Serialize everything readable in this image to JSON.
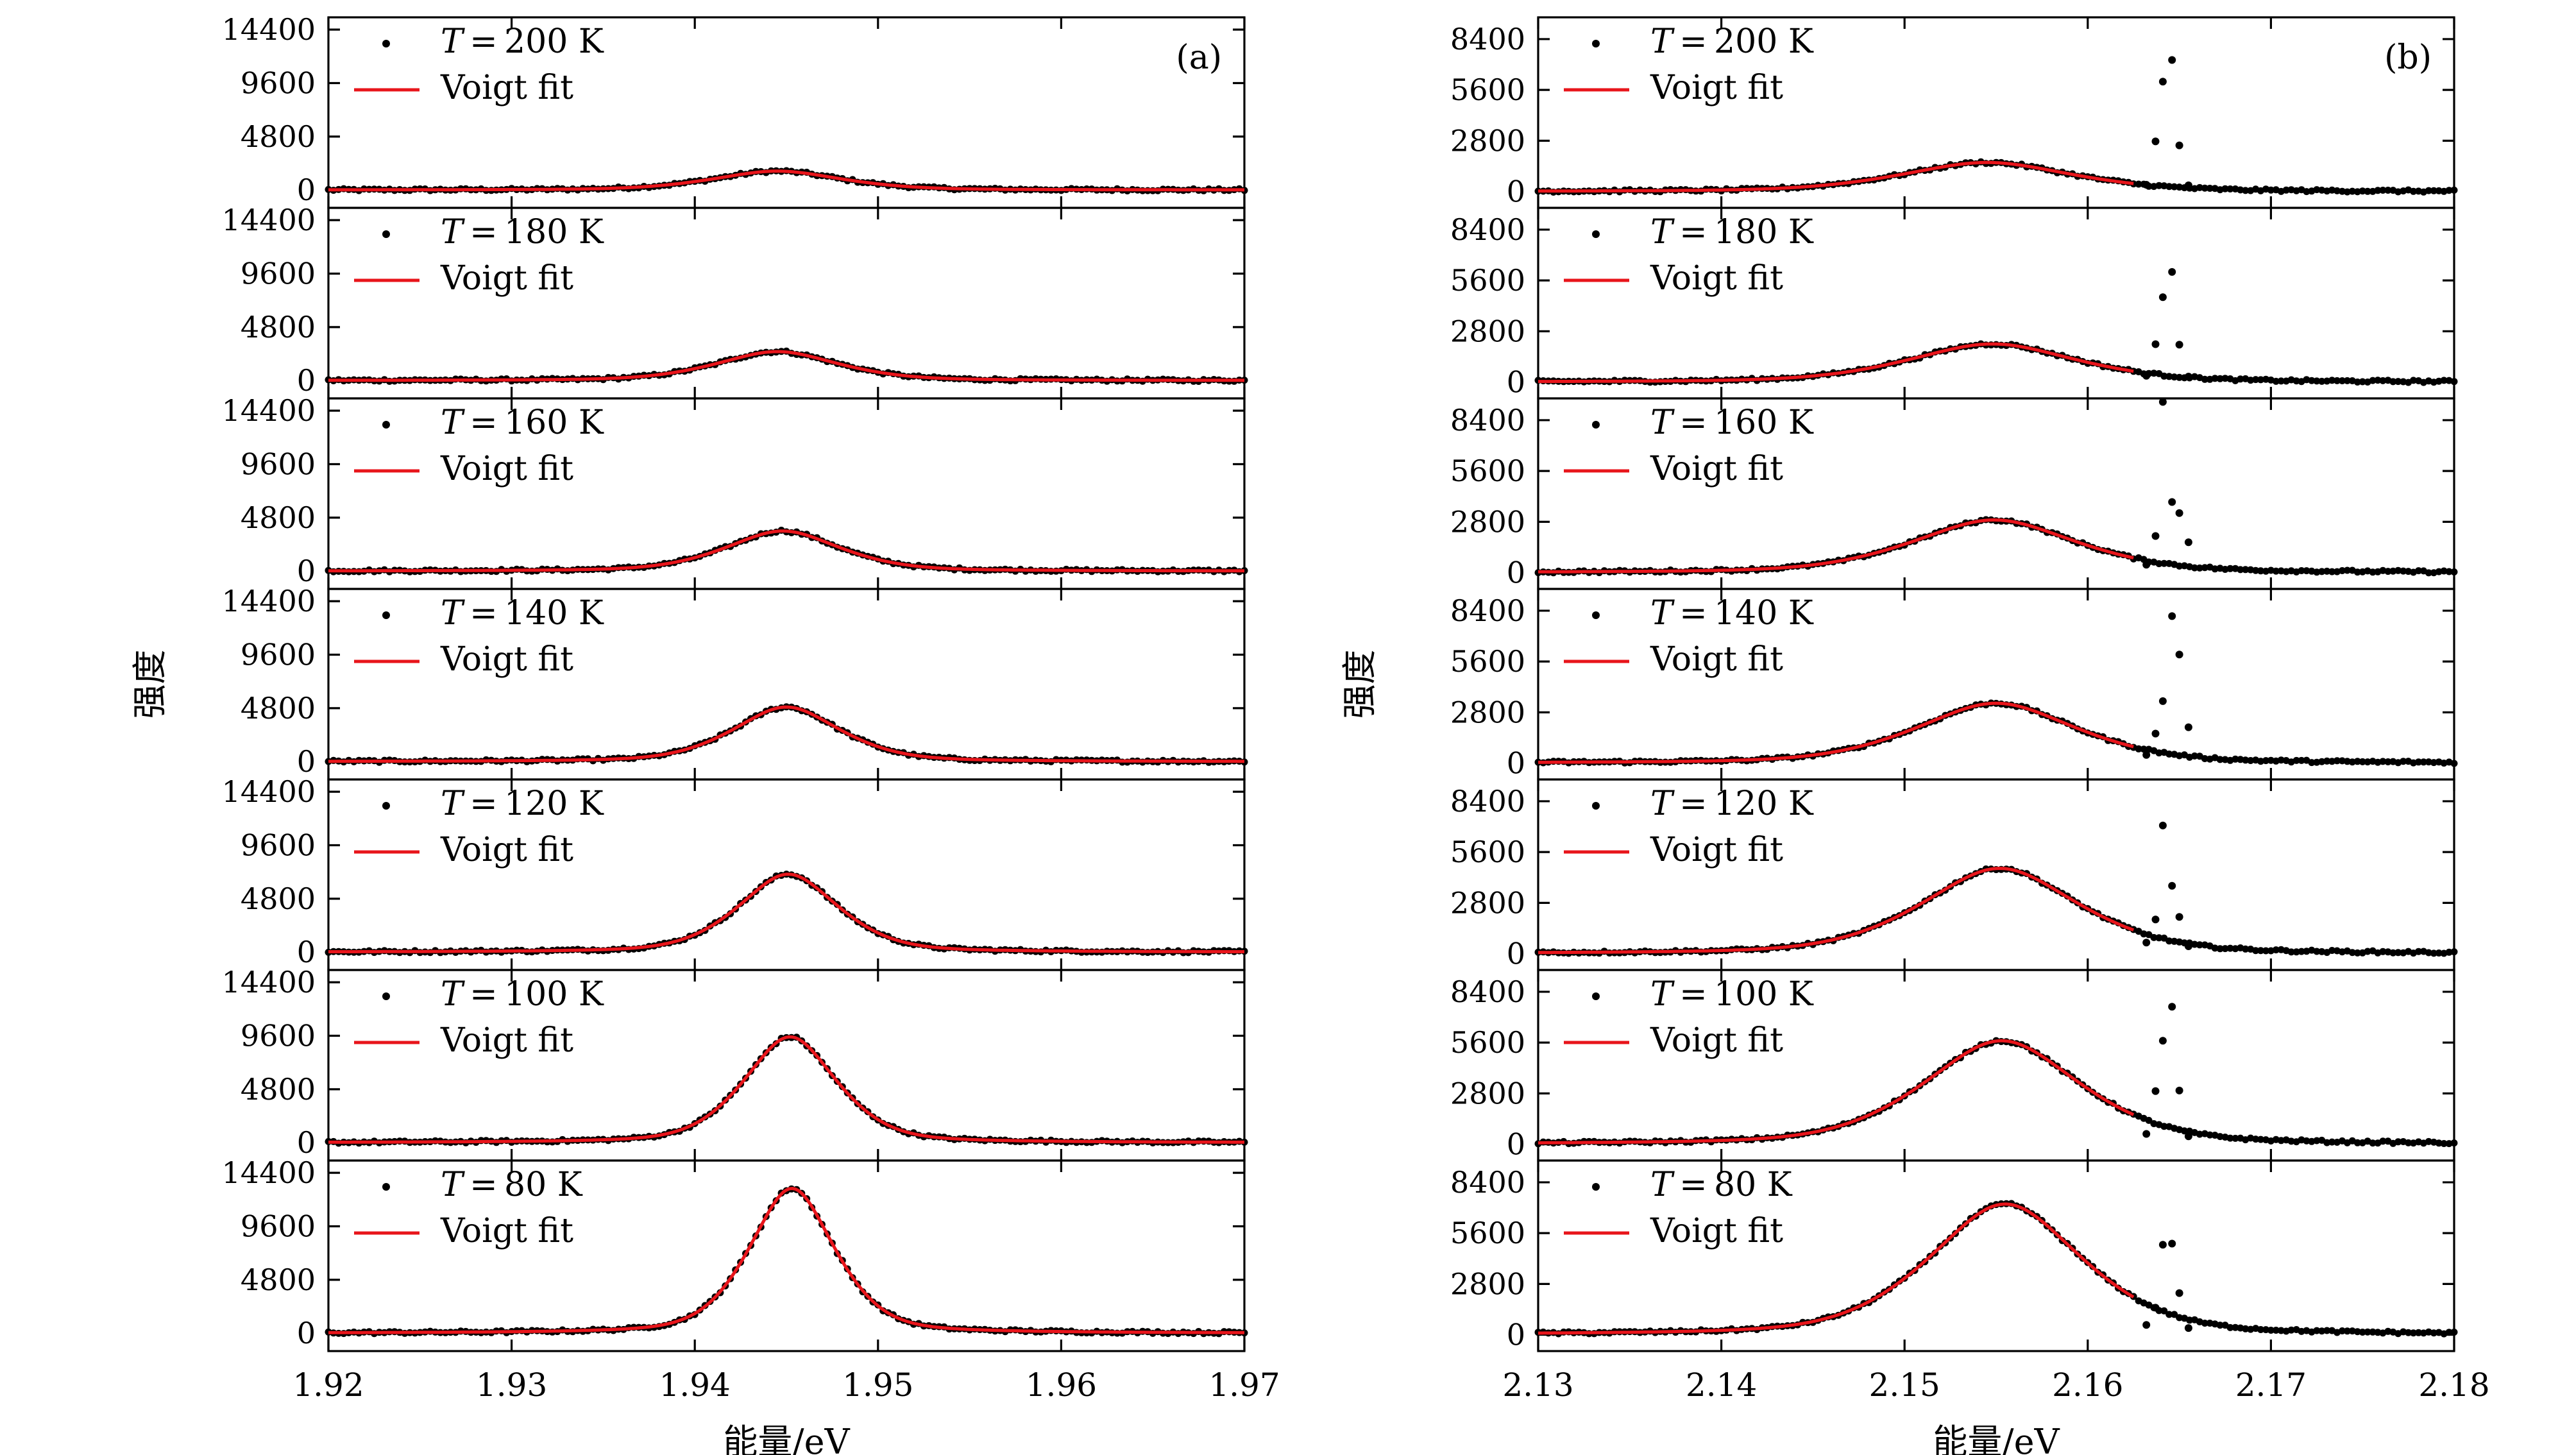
{
  "chart_data": [
    {
      "type": "scatter",
      "panel_label": "(a)",
      "xlabel": "能量/eV",
      "ylabel": "强度",
      "xlim": [
        1.92,
        1.97
      ],
      "xticks": [
        "1.92",
        "1.93",
        "1.94",
        "1.95",
        "1.96",
        "1.97"
      ],
      "yticks": [
        0,
        4800,
        9600,
        14400
      ],
      "ytick_labels": [
        "0",
        "4800",
        "9600",
        "14400"
      ],
      "ylim": [
        -1600,
        15500
      ],
      "legend": {
        "position": "top-left",
        "dots": "T = {T} K",
        "line": "Voigt fit"
      },
      "annotations": {
        "T_symbol": "T",
        "equals": "=",
        "unit": "K"
      },
      "series": [
        {
          "name": "T = 200 K",
          "T": "200",
          "peak_center": 1.9445,
          "peak_height": 1700,
          "width": 0.0036,
          "background": 0
        },
        {
          "name": "T = 180 K",
          "T": "180",
          "peak_center": 1.9445,
          "peak_height": 2600,
          "width": 0.0034,
          "background": 0
        },
        {
          "name": "T = 160 K",
          "T": "160",
          "peak_center": 1.9448,
          "peak_height": 3600,
          "width": 0.0032,
          "background": 0
        },
        {
          "name": "T = 140 K",
          "T": "140",
          "peak_center": 1.945,
          "peak_height": 4900,
          "width": 0.003,
          "background": 0
        },
        {
          "name": "T = 120 K",
          "T": "120",
          "peak_center": 1.9451,
          "peak_height": 7000,
          "width": 0.0028,
          "background": 0
        },
        {
          "name": "T = 100 K",
          "T": "100",
          "peak_center": 1.9452,
          "peak_height": 9500,
          "width": 0.0026,
          "background": 0
        },
        {
          "name": "T = 80 K",
          "T": "80",
          "peak_center": 1.9453,
          "peak_height": 13000,
          "width": 0.0024,
          "background": 0
        }
      ]
    },
    {
      "type": "scatter",
      "panel_label": "(b)",
      "xlabel": "能量/eV",
      "ylabel": "强度",
      "xlim": [
        2.13,
        2.18
      ],
      "xticks": [
        "2.13",
        "2.14",
        "2.15",
        "2.16",
        "2.17",
        "2.18"
      ],
      "yticks": [
        0,
        2800,
        5600,
        8400
      ],
      "ytick_labels": [
        "0",
        "2800",
        "5600",
        "8400"
      ],
      "ylim": [
        -900,
        9600
      ],
      "legend": {
        "position": "top-left",
        "dots": "T = {T} K",
        "line": "Voigt fit"
      },
      "annotations": {
        "T_symbol": "T",
        "equals": "=",
        "unit": "K"
      },
      "sharp_peak_positions": [
        2.1632,
        2.1637,
        2.1641,
        2.1646,
        2.165,
        2.1655
      ],
      "series": [
        {
          "name": "T = 200 K",
          "T": "200",
          "peak_center": 2.1545,
          "peak_height": 1600,
          "width": 0.0048,
          "sharp_peaks": [
            300,
            2700,
            6000,
            7200,
            2500,
            300
          ]
        },
        {
          "name": "T = 180 K",
          "T": "180",
          "peak_center": 2.1548,
          "peak_height": 2100,
          "width": 0.0047,
          "sharp_peaks": [
            250,
            2000,
            4600,
            6000,
            2000,
            250
          ]
        },
        {
          "name": "T = 160 K",
          "T": "160",
          "peak_center": 2.1549,
          "peak_height": 2900,
          "width": 0.0046,
          "sharp_peaks": [
            300,
            1900,
            9300,
            3800,
            3200,
            1600
          ]
        },
        {
          "name": "T = 140 K",
          "T": "140",
          "peak_center": 2.155,
          "peak_height": 3300,
          "width": 0.0045,
          "sharp_peaks": [
            300,
            1500,
            3300,
            8000,
            5900,
            1900
          ]
        },
        {
          "name": "T = 120 K",
          "T": "120",
          "peak_center": 2.1552,
          "peak_height": 4700,
          "width": 0.0044,
          "sharp_peaks": [
            400,
            1700,
            6900,
            3600,
            1900,
            300
          ]
        },
        {
          "name": "T = 100 K",
          "T": "100",
          "peak_center": 2.1553,
          "peak_height": 5700,
          "width": 0.0044,
          "sharp_peaks": [
            300,
            2700,
            5500,
            7400,
            2800,
            300
          ]
        },
        {
          "name": "T = 80 K",
          "T": "80",
          "peak_center": 2.1555,
          "peak_height": 7200,
          "width": 0.0043,
          "sharp_peaks": [
            200,
            1200,
            4700,
            4800,
            2100,
            200
          ]
        }
      ]
    }
  ]
}
